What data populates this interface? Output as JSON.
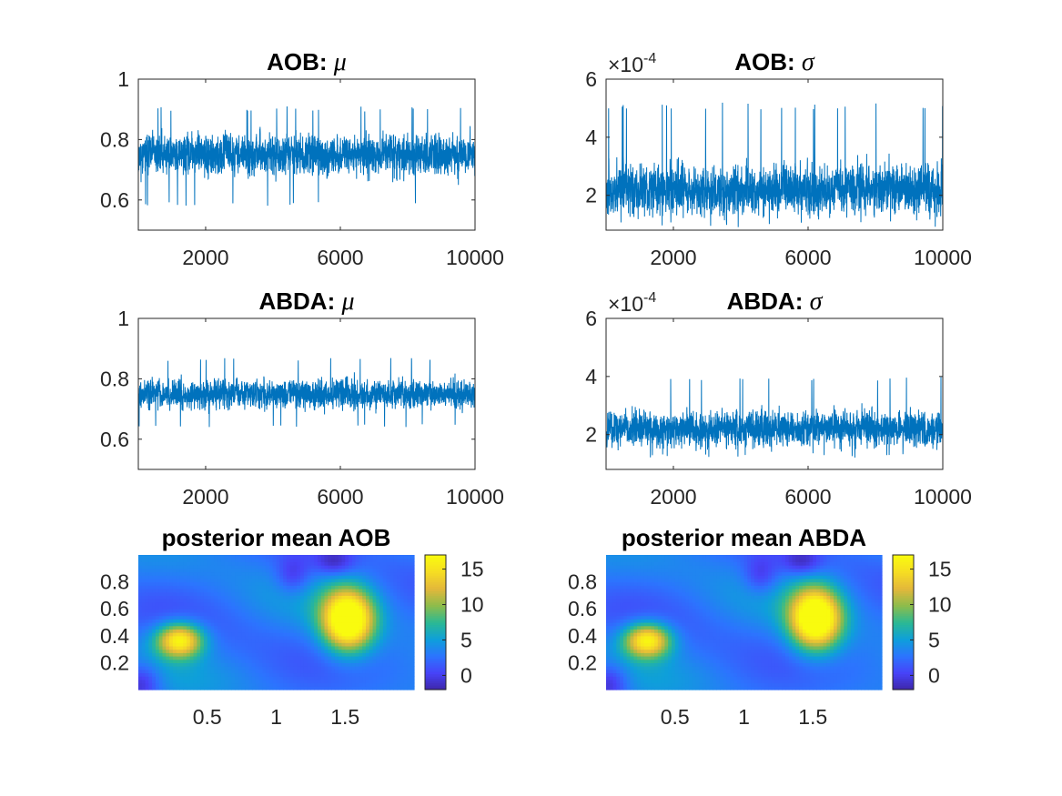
{
  "colors": {
    "series": "#0072BD",
    "axis": "#262626"
  },
  "colormap": [
    "#3E26A8",
    "#4743F8",
    "#2C74FE",
    "#0E9FDA",
    "#2BB993",
    "#8DBC4B",
    "#E3B83B",
    "#F6DD23",
    "#F9FB0E"
  ],
  "chart_data": [
    {
      "id": "aob_mu",
      "type": "line",
      "title_prefix": "AOB:",
      "title_symbol": "μ",
      "xlim": [
        1,
        10000
      ],
      "ylim": [
        0.5,
        1
      ],
      "xticks": [
        2000,
        6000,
        10000
      ],
      "xtick_labels": [
        "2000",
        "6000",
        "10000"
      ],
      "yticks": [
        0.6,
        0.8,
        1
      ],
      "ytick_labels": [
        "0.6",
        "0.8",
        "1"
      ],
      "multiplier_base": "",
      "multiplier_exp": "",
      "series": [
        {
          "name": "AOB mu trace",
          "n": 10000,
          "mean": 0.75,
          "sd": 0.045,
          "min": 0.58,
          "max": 0.91,
          "seed": 11
        }
      ]
    },
    {
      "id": "aob_sigma",
      "type": "line",
      "title_prefix": "AOB:",
      "title_symbol": "σ",
      "xlim": [
        1,
        10000
      ],
      "ylim": [
        0.8,
        6
      ],
      "xticks": [
        2000,
        6000,
        10000
      ],
      "xtick_labels": [
        "2000",
        "6000",
        "10000"
      ],
      "yticks": [
        2,
        4,
        6
      ],
      "ytick_labels": [
        "2",
        "4",
        "6"
      ],
      "multiplier_base": "×10",
      "multiplier_exp": "-4",
      "series": [
        {
          "name": "AOB sigma trace",
          "n": 10000,
          "mean": 2.2,
          "sd": 0.6,
          "min": 0.9,
          "max": 5.2,
          "seed": 23
        }
      ]
    },
    {
      "id": "abda_mu",
      "type": "line",
      "title_prefix": "ABDA:",
      "title_symbol": "μ",
      "xlim": [
        1,
        10000
      ],
      "ylim": [
        0.5,
        1
      ],
      "xticks": [
        2000,
        6000,
        10000
      ],
      "xtick_labels": [
        "2000",
        "6000",
        "10000"
      ],
      "yticks": [
        0.6,
        0.8,
        1
      ],
      "ytick_labels": [
        "0.6",
        "0.8",
        "1"
      ],
      "multiplier_base": "",
      "multiplier_exp": "",
      "series": [
        {
          "name": "ABDA mu trace",
          "n": 10000,
          "mean": 0.75,
          "sd": 0.032,
          "min": 0.64,
          "max": 0.87,
          "seed": 37
        }
      ]
    },
    {
      "id": "abda_sigma",
      "type": "line",
      "title_prefix": "ABDA:",
      "title_symbol": "σ",
      "xlim": [
        1,
        10000
      ],
      "ylim": [
        0.8,
        6
      ],
      "xticks": [
        2000,
        6000,
        10000
      ],
      "xtick_labels": [
        "2000",
        "6000",
        "10000"
      ],
      "yticks": [
        2,
        4,
        6
      ],
      "ytick_labels": [
        "2",
        "4",
        "6"
      ],
      "multiplier_base": "×10",
      "multiplier_exp": "-4",
      "series": [
        {
          "name": "ABDA sigma trace",
          "n": 10000,
          "mean": 2.2,
          "sd": 0.42,
          "min": 1.2,
          "max": 4.0,
          "seed": 53
        }
      ]
    },
    {
      "id": "posterior_aob",
      "type": "heatmap",
      "title": "posterior mean AOB",
      "xlim": [
        0,
        2
      ],
      "ylim": [
        0,
        1
      ],
      "xticks": [
        0.5,
        1,
        1.5
      ],
      "xtick_labels": [
        "0.5",
        "1",
        "1.5"
      ],
      "yticks": [
        0.2,
        0.4,
        0.6,
        0.8
      ],
      "ytick_labels": [
        "0.2",
        "0.4",
        "0.6",
        "0.8"
      ],
      "clim": [
        -2,
        17
      ],
      "colorbar_ticks": [
        0,
        5,
        10,
        15
      ],
      "colorbar_labels": [
        "0",
        "5",
        "10",
        "15"
      ],
      "peaks": [
        {
          "x": 0.3,
          "y": 0.37,
          "amp": 14,
          "sx": 0.12,
          "sy": 0.09
        },
        {
          "x": 1.52,
          "y": 0.52,
          "amp": 18,
          "sx": 0.13,
          "sy": 0.16
        }
      ]
    },
    {
      "id": "posterior_abda",
      "type": "heatmap",
      "title": "posterior mean ABDA",
      "xlim": [
        0,
        2
      ],
      "ylim": [
        0,
        1
      ],
      "xticks": [
        0.5,
        1,
        1.5
      ],
      "xtick_labels": [
        "0.5",
        "1",
        "1.5"
      ],
      "yticks": [
        0.2,
        0.4,
        0.6,
        0.8
      ],
      "ytick_labels": [
        "0.2",
        "0.4",
        "0.6",
        "0.8"
      ],
      "clim": [
        -2,
        17
      ],
      "colorbar_ticks": [
        0,
        5,
        10,
        15
      ],
      "colorbar_labels": [
        "0",
        "5",
        "10",
        "15"
      ],
      "peaks": [
        {
          "x": 0.3,
          "y": 0.37,
          "amp": 14,
          "sx": 0.12,
          "sy": 0.09
        },
        {
          "x": 1.52,
          "y": 0.53,
          "amp": 18,
          "sx": 0.13,
          "sy": 0.16
        }
      ]
    }
  ]
}
